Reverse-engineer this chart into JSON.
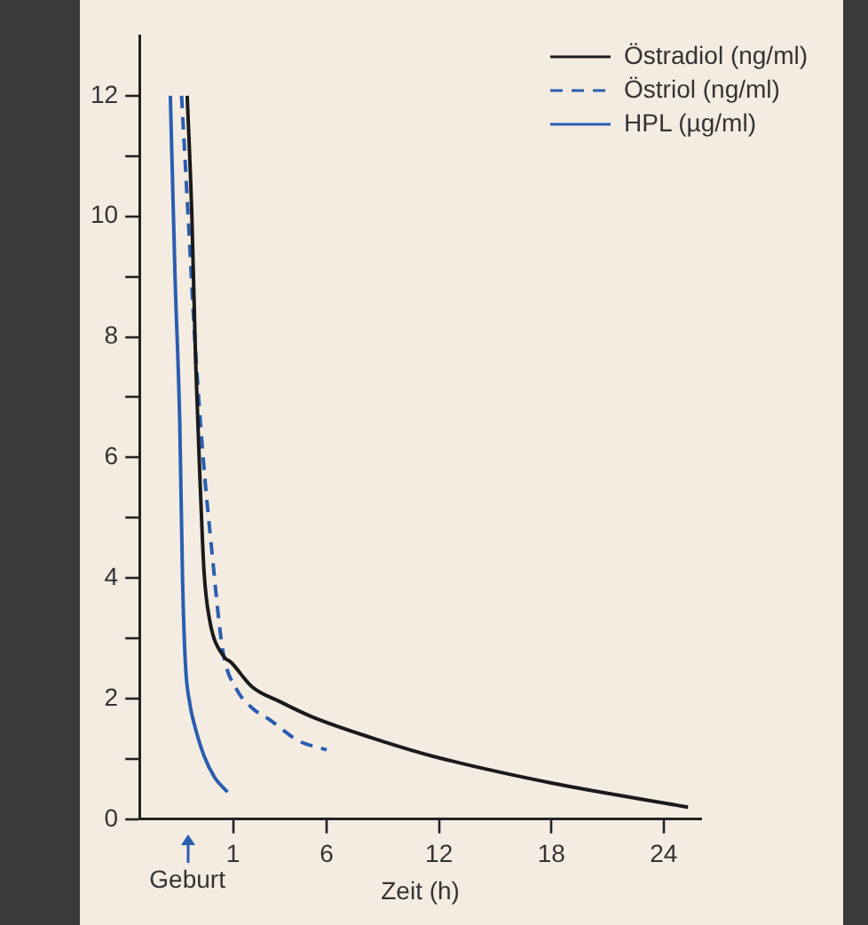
{
  "chart_data": {
    "type": "line",
    "xlabel": "Zeit (h)",
    "xlim": [
      -4,
      26
    ],
    "xticks": [
      1,
      6,
      12,
      18,
      24
    ],
    "ylim": [
      0,
      13
    ],
    "yticks": [
      0,
      {
        "value": 1,
        "label": null
      },
      2,
      {
        "value": 3,
        "label": null
      },
      4,
      {
        "value": 5,
        "label": null
      },
      6,
      {
        "value": 7,
        "label": null
      },
      8,
      {
        "value": 9,
        "label": null
      },
      10,
      {
        "value": 11,
        "label": null
      },
      12
    ],
    "grid": false,
    "legend": "top right",
    "marker": "none",
    "annotations": [
      "Geburt"
    ],
    "series": [
      {
        "name": "Östradiol (ng/ml)",
        "color": "#1a1a1a",
        "line_style": "solid",
        "x": [
          -1.45,
          -1.2,
          -1.0,
          -0.75,
          -0.55,
          -0.25,
          0.5,
          0.9,
          2,
          3.5,
          5.2,
          8.4,
          11.6,
          18,
          25.3
        ],
        "values": [
          12,
          10,
          7.6,
          5.5,
          4.1,
          3.3,
          2.7,
          2.6,
          2.2,
          1.95,
          1.7,
          1.35,
          1.05,
          0.6,
          0.2
        ]
      },
      {
        "name": "Östriol (ng/ml)",
        "color": "#2a5db0",
        "line_style": "dashed",
        "x": [
          -1.75,
          -1.4,
          -1.05,
          -0.6,
          -0.15,
          0.45,
          1.2,
          2,
          2.95,
          4.5,
          6
        ],
        "values": [
          12,
          10,
          8,
          6,
          4.5,
          2.8,
          2.15,
          1.85,
          1.65,
          1.3,
          1.15
        ]
      },
      {
        "name": "HPL (µg/ml)",
        "color": "#2a5db0",
        "line_style": "solid",
        "x": [
          -2.35,
          -2.1,
          -1.85,
          -1.7,
          -1.55,
          -1.3,
          -1.05,
          -0.55,
          0,
          0.7
        ],
        "values": [
          12,
          9,
          6.6,
          4,
          2.6,
          1.9,
          1.55,
          1.05,
          0.7,
          0.45
        ]
      }
    ]
  }
}
